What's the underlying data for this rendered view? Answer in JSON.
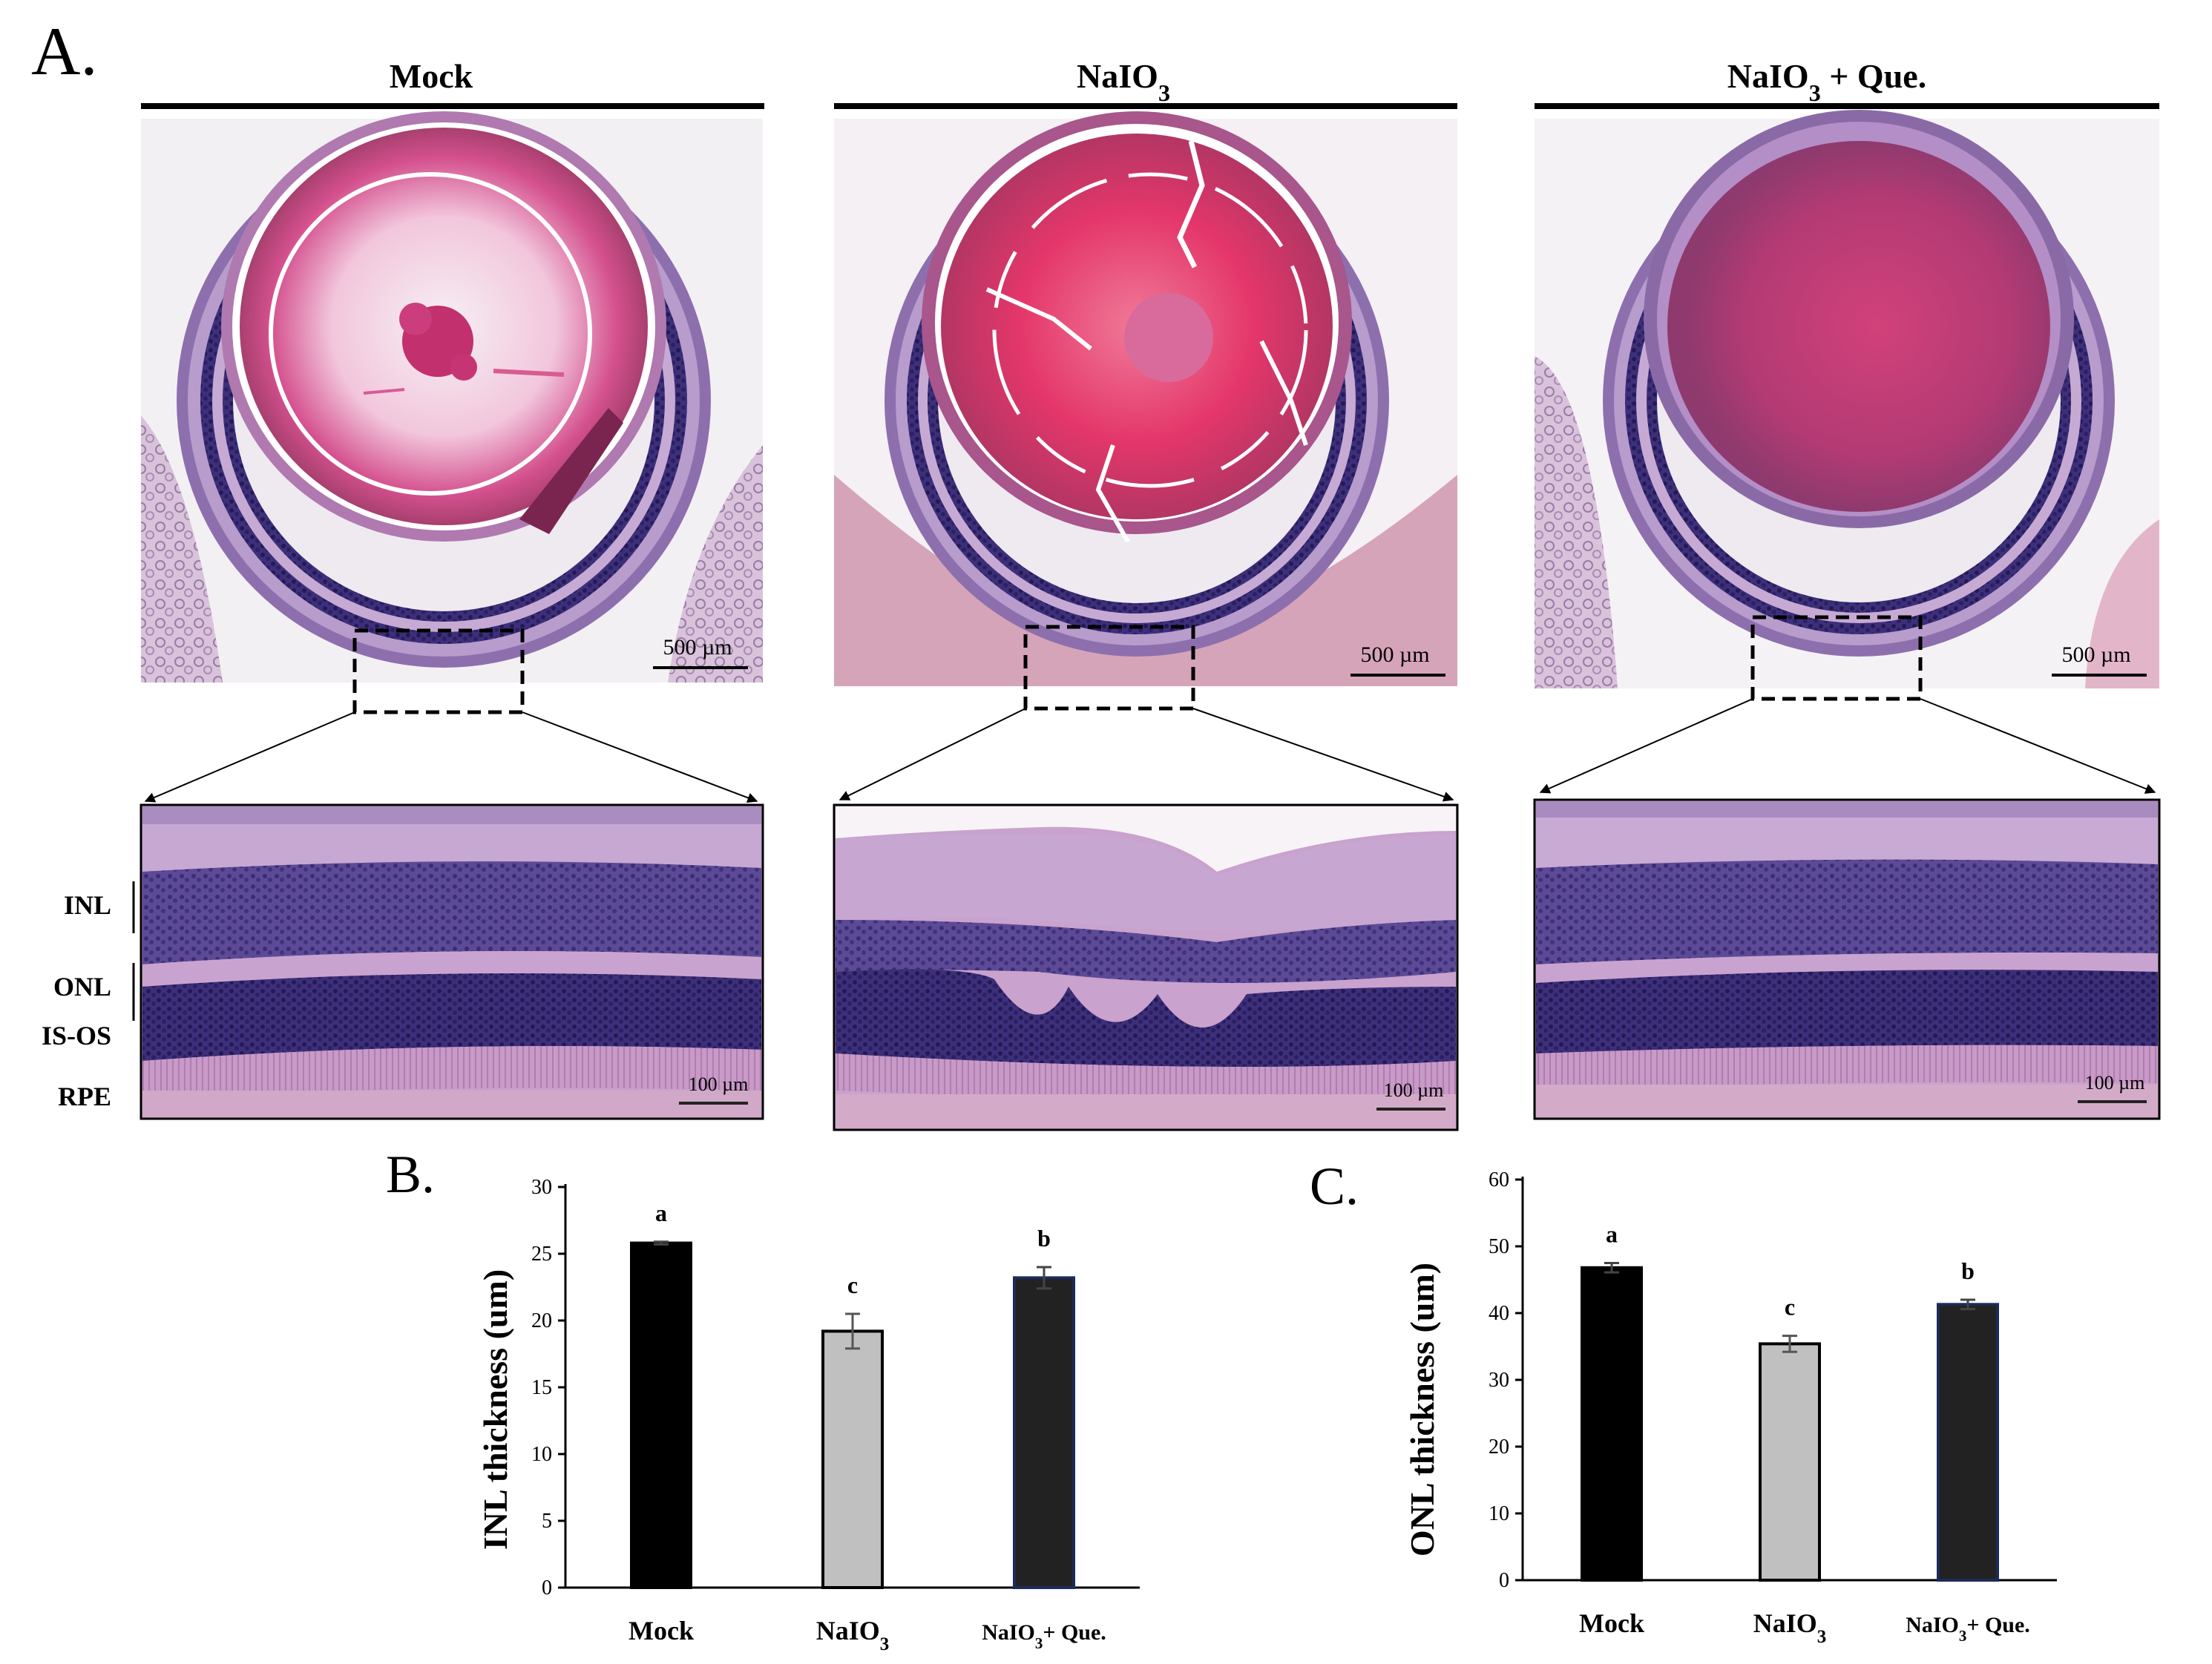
{
  "panel_a": {
    "letter": "A.",
    "groups": [
      {
        "title": "Mock",
        "title_sub": "",
        "title_suffix": "",
        "scale_top": "500 µm",
        "scale_bottom": "100 µm"
      },
      {
        "title": "NaIO",
        "title_sub": "3",
        "title_suffix": "",
        "scale_top": "500 µm",
        "scale_bottom": "100 µm"
      },
      {
        "title": "NaIO",
        "title_sub": "3",
        "title_suffix": " + Que.",
        "scale_top": "500 µm",
        "scale_bottom": "100 µm"
      }
    ],
    "layer_labels": [
      "INL",
      "ONL",
      "IS-OS",
      "RPE"
    ]
  },
  "chart_data": [
    {
      "type": "bar",
      "letter": "B.",
      "categories": [
        {
          "main": "Mock",
          "sub": "",
          "suffix": ""
        },
        {
          "main": "NaIO",
          "sub": "3",
          "suffix": ""
        },
        {
          "main": "NaIO",
          "sub": "3",
          "suffix": "+ Que."
        }
      ],
      "values": [
        25.8,
        19.2,
        23.2
      ],
      "errors": [
        0.1,
        1.3,
        0.8
      ],
      "significance": [
        "a",
        "c",
        "b"
      ],
      "ylabel": "INL thickness (um)",
      "ylim": [
        0,
        30
      ],
      "yticks": [
        0,
        5,
        10,
        15,
        20,
        25,
        30
      ],
      "colors": [
        "#000000",
        "#c0c0c0",
        "#222222"
      ],
      "outline_colors": [
        "#000000",
        "#000000",
        "#1c2b57"
      ]
    },
    {
      "type": "bar",
      "letter": "C.",
      "categories": [
        {
          "main": "Mock",
          "sub": "",
          "suffix": ""
        },
        {
          "main": "NaIO",
          "sub": "3",
          "suffix": ""
        },
        {
          "main": "NaIO",
          "sub": "3",
          "suffix": "+ Que."
        }
      ],
      "values": [
        46.8,
        35.4,
        41.3
      ],
      "errors": [
        0.7,
        1.2,
        0.7
      ],
      "significance": [
        "a",
        "c",
        "b"
      ],
      "ylabel": "ONL thickness (um)",
      "ylim": [
        0,
        60
      ],
      "yticks": [
        0,
        10,
        20,
        30,
        40,
        50,
        60
      ],
      "colors": [
        "#000000",
        "#c0c0c0",
        "#222222"
      ],
      "outline_colors": [
        "#000000",
        "#000000",
        "#1c2b57"
      ]
    }
  ]
}
